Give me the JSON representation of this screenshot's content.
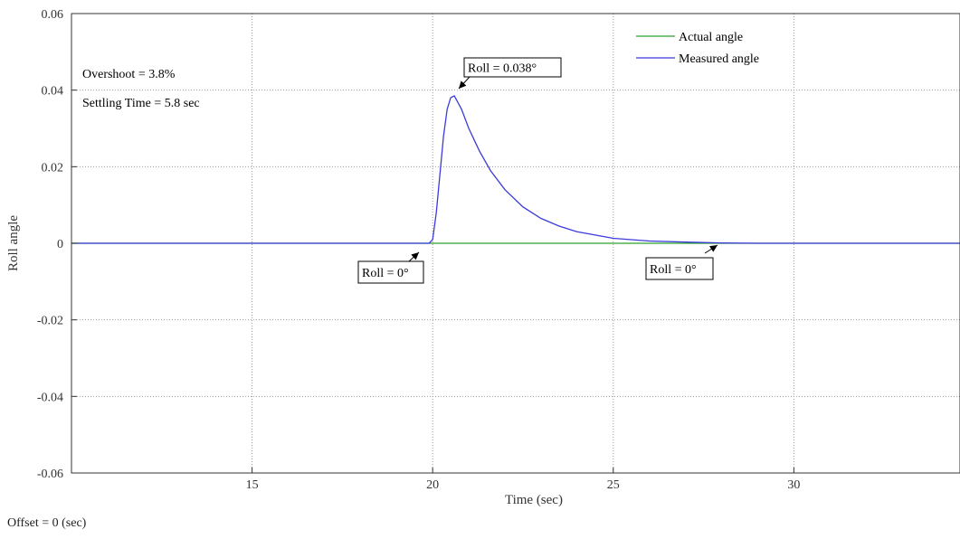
{
  "chart_data": {
    "type": "line",
    "title": "",
    "xlabel": "Time (sec)",
    "ylabel": "Roll angle",
    "xlim": [
      10,
      34.6
    ],
    "ylim": [
      -0.06,
      0.06
    ],
    "xticks": [
      15,
      20,
      25,
      30
    ],
    "yticks": [
      0.06,
      0.04,
      0.02,
      0,
      -0.02,
      -0.04,
      -0.06
    ],
    "ytick_labels": [
      "0.06",
      "0.04",
      "0.02",
      "0",
      "-0.02",
      "-0.04",
      "-0.06"
    ],
    "grid": true,
    "legend_position": "top-right",
    "series": [
      {
        "name": "Actual angle",
        "color": "#2ca02c",
        "x": [
          10,
          34.6
        ],
        "y": [
          0,
          0
        ]
      },
      {
        "name": "Measured angle",
        "color": "#3b3bdb",
        "x": [
          10,
          19.9,
          20.0,
          20.1,
          20.2,
          20.3,
          20.4,
          20.5,
          20.6,
          20.8,
          21.0,
          21.3,
          21.6,
          22.0,
          22.5,
          23.0,
          23.5,
          24.0,
          25.0,
          26.0,
          27.0,
          28.0,
          29.0,
          34.6
        ],
        "y": [
          0,
          0,
          0.001,
          0.008,
          0.018,
          0.028,
          0.035,
          0.038,
          0.0385,
          0.035,
          0.03,
          0.024,
          0.019,
          0.014,
          0.0095,
          0.0065,
          0.0045,
          0.003,
          0.0013,
          0.0006,
          0.0003,
          0.0001,
          0,
          0
        ]
      }
    ],
    "annotations": [
      {
        "id": "overshoot",
        "text": "Overshoot = 3.8%"
      },
      {
        "id": "settling",
        "text": "Settling Time = 5.8 sec"
      },
      {
        "id": "roll-peak",
        "text": "Roll = 0.038°",
        "x": 20.6,
        "y": 0.038,
        "boxed": true
      },
      {
        "id": "roll-start",
        "text": "Roll = 0°",
        "x": 19.9,
        "y": 0,
        "boxed": true
      },
      {
        "id": "roll-end",
        "text": "Roll = 0°",
        "x": 27.9,
        "y": 0,
        "boxed": true
      }
    ],
    "footer": "Offset = 0 (sec)"
  }
}
